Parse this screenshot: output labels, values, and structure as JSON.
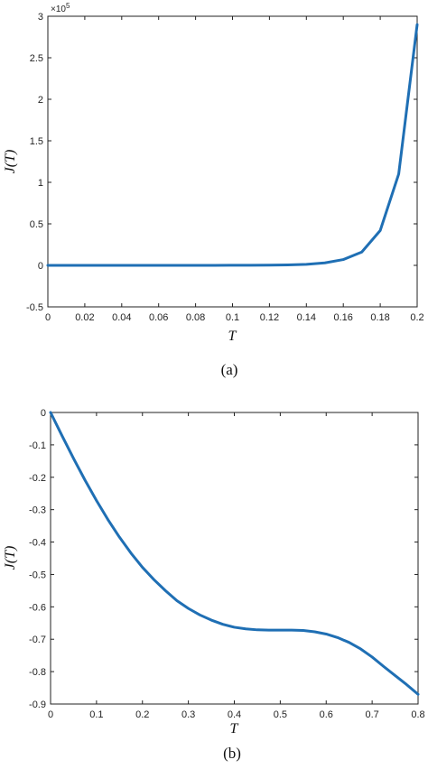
{
  "chart_data": [
    {
      "type": "line",
      "caption": "(a)",
      "xlabel": "T",
      "ylabel": "J(T)",
      "xlim": [
        0,
        0.2
      ],
      "ylim": [
        -0.5,
        3
      ],
      "y_multiplier": "×10",
      "y_exponent": "5",
      "xticks": [
        "0",
        "0.02",
        "0.04",
        "0.06",
        "0.08",
        "0.1",
        "0.12",
        "0.14",
        "0.16",
        "0.18",
        "0.2"
      ],
      "xtick_values": [
        0,
        0.02,
        0.04,
        0.06,
        0.08,
        0.1,
        0.12,
        0.14,
        0.16,
        0.18,
        0.2
      ],
      "yticks": [
        "-0.5",
        "0",
        "0.5",
        "1",
        "1.5",
        "2",
        "2.5",
        "3"
      ],
      "ytick_values": [
        -0.5,
        0,
        0.5,
        1,
        1.5,
        2,
        2.5,
        3
      ],
      "grid": false,
      "color": "#1f6fb4",
      "series": [
        {
          "x": [
            0,
            0.01,
            0.02,
            0.03,
            0.04,
            0.05,
            0.06,
            0.07,
            0.08,
            0.09,
            0.1,
            0.11,
            0.12,
            0.13,
            0.14,
            0.15,
            0.16,
            0.17,
            0.18,
            0.19,
            0.2
          ],
          "y": [
            0,
            0,
            0,
            0,
            0,
            0,
            0,
            0,
            0,
            0,
            0.001,
            0.002,
            0.003,
            0.006,
            0.012,
            0.03,
            0.07,
            0.16,
            0.42,
            1.1,
            2.9
          ]
        }
      ]
    },
    {
      "type": "line",
      "caption": "(b)",
      "xlabel": "T",
      "ylabel": "J(T)",
      "xlim": [
        0,
        0.8
      ],
      "ylim": [
        -0.9,
        0
      ],
      "xticks": [
        "0",
        "0.1",
        "0.2",
        "0.3",
        "0.4",
        "0.5",
        "0.6",
        "0.7",
        "0.8"
      ],
      "xtick_values": [
        0,
        0.1,
        0.2,
        0.3,
        0.4,
        0.5,
        0.6,
        0.7,
        0.8
      ],
      "yticks": [
        "-0.9",
        "-0.8",
        "-0.7",
        "-0.6",
        "-0.5",
        "-0.4",
        "-0.3",
        "-0.2",
        "-0.1",
        "0"
      ],
      "ytick_values": [
        -0.9,
        -0.8,
        -0.7,
        -0.6,
        -0.5,
        -0.4,
        -0.3,
        -0.2,
        -0.1,
        0
      ],
      "grid": false,
      "color": "#1f6fb4",
      "series": [
        {
          "x": [
            0,
            0.025,
            0.05,
            0.075,
            0.1,
            0.125,
            0.15,
            0.175,
            0.2,
            0.225,
            0.25,
            0.275,
            0.3,
            0.325,
            0.35,
            0.375,
            0.4,
            0.425,
            0.45,
            0.475,
            0.5,
            0.525,
            0.55,
            0.575,
            0.6,
            0.625,
            0.65,
            0.675,
            0.7,
            0.725,
            0.75,
            0.775,
            0.8
          ],
          "y": [
            0,
            -0.072,
            -0.142,
            -0.209,
            -0.272,
            -0.331,
            -0.385,
            -0.434,
            -0.478,
            -0.516,
            -0.55,
            -0.581,
            -0.605,
            -0.625,
            -0.641,
            -0.654,
            -0.663,
            -0.668,
            -0.671,
            -0.672,
            -0.672,
            -0.672,
            -0.673,
            -0.677,
            -0.684,
            -0.695,
            -0.71,
            -0.73,
            -0.755,
            -0.784,
            -0.812,
            -0.84,
            -0.87
          ]
        }
      ]
    }
  ]
}
